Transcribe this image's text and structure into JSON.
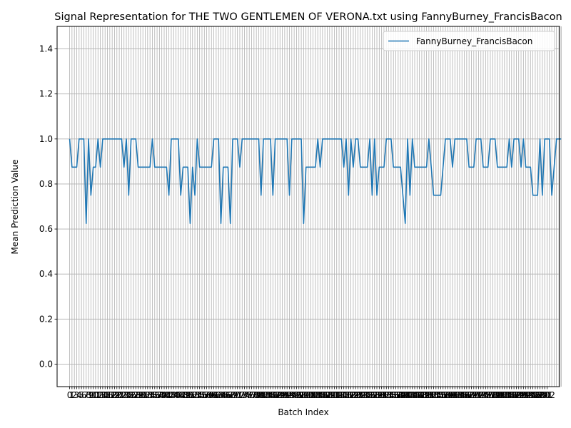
{
  "chart_data": {
    "type": "line",
    "title": "Signal Representation for THE TWO GENTLEMEN OF VERONA.txt using FannyBurney_FrancisBacon",
    "xlabel": "Batch Index",
    "ylabel": "Mean Prediction Value",
    "xlim": [
      -5.3,
      207.3
    ],
    "ylim": [
      -0.1,
      1.5
    ],
    "yticks": [
      0.0,
      0.2,
      0.4,
      0.6,
      0.8,
      1.0,
      1.2,
      1.4
    ],
    "ytick_labels": [
      "0.0",
      "0.2",
      "0.4",
      "0.6",
      "0.8",
      "1.0",
      "1.2",
      "1.4"
    ],
    "x_gridlines_every_index": true,
    "grid": true,
    "legend_position": "upper-right",
    "series": [
      {
        "name": "FannyBurney_FrancisBacon",
        "color": "#1f77b4",
        "values": [
          1.0,
          0.875,
          0.875,
          0.875,
          1.0,
          1.0,
          1.0,
          0.625,
          1.0,
          0.75,
          0.875,
          0.875,
          1.0,
          0.875,
          1.0,
          1.0,
          1.0,
          1.0,
          1.0,
          1.0,
          1.0,
          1.0,
          1.0,
          0.875,
          1.0,
          0.75,
          1.0,
          1.0,
          1.0,
          0.875,
          0.875,
          0.875,
          0.875,
          0.875,
          0.875,
          1.0,
          0.875,
          0.875,
          0.875,
          0.875,
          0.875,
          0.875,
          0.75,
          1.0,
          1.0,
          1.0,
          1.0,
          0.75,
          0.875,
          0.875,
          0.875,
          0.625,
          0.875,
          0.75,
          1.0,
          0.875,
          0.875,
          0.875,
          0.875,
          0.875,
          0.875,
          1.0,
          1.0,
          1.0,
          0.625,
          0.875,
          0.875,
          0.875,
          0.625,
          1.0,
          1.0,
          1.0,
          0.875,
          1.0,
          1.0,
          1.0,
          1.0,
          1.0,
          1.0,
          1.0,
          1.0,
          0.75,
          1.0,
          1.0,
          1.0,
          1.0,
          0.75,
          1.0,
          1.0,
          1.0,
          1.0,
          1.0,
          1.0,
          0.75,
          1.0,
          1.0,
          1.0,
          1.0,
          1.0,
          0.625,
          0.875,
          0.875,
          0.875,
          0.875,
          0.875,
          1.0,
          0.875,
          1.0,
          1.0,
          1.0,
          1.0,
          1.0,
          1.0,
          1.0,
          1.0,
          1.0,
          0.875,
          1.0,
          0.75,
          1.0,
          0.875,
          1.0,
          1.0,
          0.875,
          0.875,
          0.875,
          0.875,
          1.0,
          0.75,
          1.0,
          0.75,
          0.875,
          0.875,
          0.875,
          1.0,
          1.0,
          1.0,
          0.875,
          0.875,
          0.875,
          0.875,
          0.75,
          0.625,
          1.0,
          0.75,
          1.0,
          0.875,
          0.875,
          0.875,
          0.875,
          0.875,
          0.875,
          1.0,
          0.875,
          0.75,
          0.75,
          0.75,
          0.75,
          0.875,
          1.0,
          1.0,
          1.0,
          0.875,
          1.0,
          1.0,
          1.0,
          1.0,
          1.0,
          1.0,
          0.875,
          0.875,
          0.875,
          1.0,
          1.0,
          1.0,
          0.875,
          0.875,
          0.875,
          1.0,
          1.0,
          1.0,
          0.875,
          0.875,
          0.875,
          0.875,
          0.875,
          1.0,
          0.875,
          1.0,
          1.0,
          1.0,
          0.875,
          1.0,
          0.875,
          0.875,
          0.875,
          0.75,
          0.75,
          0.75,
          1.0,
          0.75,
          1.0,
          1.0,
          1.0,
          0.75,
          0.875,
          1.0,
          1.0,
          1.0
        ]
      }
    ],
    "xtick_labels": [
      "0",
      "1",
      "2",
      "3",
      "4",
      "5",
      "6",
      "7",
      "8",
      "9",
      "10",
      "11",
      "12",
      "13",
      "14",
      "15",
      "16",
      "17",
      "18",
      "19",
      "20",
      "21",
      "22",
      "23",
      "24",
      "25",
      "26",
      "27",
      "28",
      "29",
      "30",
      "31",
      "32",
      "33",
      "34",
      "35",
      "36",
      "37",
      "38",
      "39",
      "40",
      "41",
      "42",
      "43",
      "44",
      "45",
      "46",
      "47",
      "48",
      "49",
      "50",
      "51",
      "52",
      "53",
      "54",
      "55",
      "56",
      "57",
      "58",
      "59",
      "60",
      "61",
      "62",
      "63",
      "64",
      "65",
      "66",
      "67",
      "68",
      "69",
      "70",
      "71",
      "72",
      "73",
      "74",
      "75",
      "76",
      "77",
      "78",
      "79",
      "80",
      "81",
      "82",
      "83",
      "84",
      "85",
      "86",
      "87",
      "88",
      "89",
      "90",
      "91",
      "92",
      "93",
      "94",
      "95",
      "96",
      "97",
      "98",
      "99",
      "100",
      "101",
      "102",
      "103",
      "104",
      "105",
      "106",
      "107",
      "108",
      "109",
      "110",
      "111",
      "112",
      "113",
      "114",
      "115",
      "116",
      "117",
      "118",
      "119",
      "120",
      "121",
      "122",
      "123",
      "124",
      "125",
      "126",
      "127",
      "128",
      "129",
      "130",
      "131",
      "132",
      "133",
      "134",
      "135",
      "136",
      "137",
      "138",
      "139",
      "140",
      "141",
      "142",
      "143",
      "144",
      "145",
      "146",
      "147",
      "148",
      "149",
      "150",
      "151",
      "152",
      "153",
      "154",
      "155",
      "156",
      "157",
      "158",
      "159",
      "160",
      "161",
      "162",
      "163",
      "164",
      "165",
      "166",
      "167",
      "168",
      "169",
      "170",
      "171",
      "172",
      "173",
      "174",
      "175",
      "176",
      "177",
      "178",
      "179",
      "180",
      "181",
      "182",
      "183",
      "184",
      "185",
      "186",
      "187",
      "188",
      "189",
      "190",
      "191",
      "192",
      "193",
      "194",
      "195",
      "196",
      "197",
      "198",
      "199",
      "200",
      "201",
      "202"
    ]
  }
}
